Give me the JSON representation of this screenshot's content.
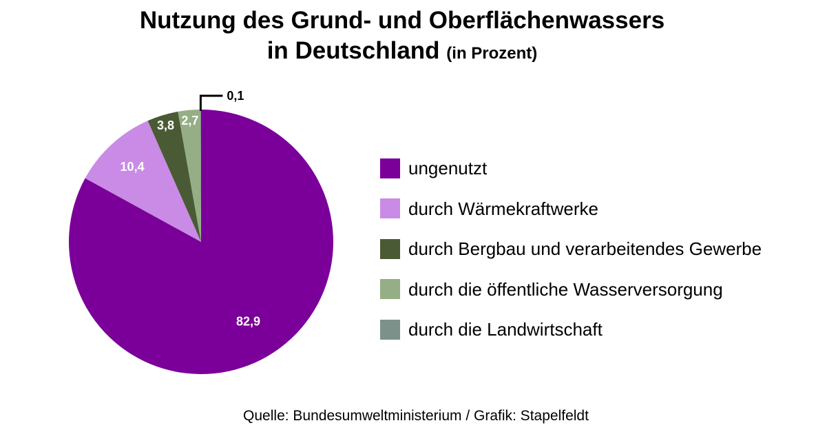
{
  "title": {
    "line1": "Nutzung des Grund- und Oberflächenwassers",
    "line2": "in Deutschland",
    "line2_suffix": "(in Prozent)"
  },
  "source": "Quelle: Bundesumweltministerium / Grafik: Stapelfeldt",
  "chart_data": {
    "type": "pie",
    "title": "Nutzung des Grund- und Oberflächenwassers in Deutschland (in Prozent)",
    "start": "12 o'clock",
    "direction": "clockwise",
    "legend_position": "right",
    "slices": [
      {
        "name": "ungenutzt",
        "value": 82.9,
        "label": "82,9",
        "color": "#7b0099",
        "label_color": "#ffffff"
      },
      {
        "name": "durch Wärmekraftwerke",
        "value": 10.4,
        "label": "10,4",
        "color": "#c98be6",
        "label_color": "#ffffff"
      },
      {
        "name": "durch Bergbau und verarbeitendes Gewerbe",
        "value": 3.8,
        "label": "3,8",
        "color": "#4a5a35",
        "label_color": "#ffffff"
      },
      {
        "name": "durch die öffentliche Wasserversorgung",
        "value": 2.7,
        "label": "2,7",
        "color": "#95ae85",
        "label_color": "#ffffff"
      },
      {
        "name": "durch die Landwirtschaft",
        "value": 0.1,
        "label": "0,1",
        "color": "#7b918a",
        "label_color": "#000000"
      }
    ]
  }
}
